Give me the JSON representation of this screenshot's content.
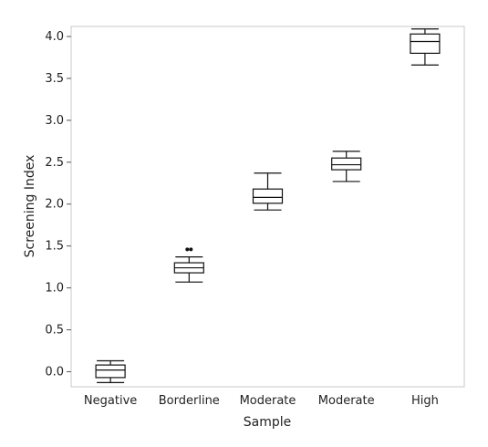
{
  "chart_data": {
    "type": "boxplot",
    "xlabel": "Sample",
    "ylabel": "Screening Index",
    "ylim": [
      -0.18,
      4.12
    ],
    "yticks": [
      0.0,
      0.5,
      1.0,
      1.5,
      2.0,
      2.5,
      3.0,
      3.5,
      4.0
    ],
    "ytick_labels": [
      "0.0",
      "0.5",
      "1.0",
      "1.5",
      "2.0",
      "2.5",
      "3.0",
      "3.5",
      "4.0"
    ],
    "grid": false,
    "categories": [
      "Negative",
      "Borderline",
      "Moderate",
      "Moderate",
      "High"
    ],
    "boxes": [
      {
        "category": "Negative",
        "min": -0.13,
        "q1": -0.07,
        "median": 0.02,
        "q3": 0.08,
        "max": 0.13,
        "outliers": []
      },
      {
        "category": "Borderline",
        "min": 1.07,
        "q1": 1.18,
        "median": 1.24,
        "q3": 1.3,
        "max": 1.37,
        "outliers": [
          1.46,
          1.46
        ]
      },
      {
        "category": "Moderate",
        "min": 1.93,
        "q1": 2.01,
        "median": 2.08,
        "q3": 2.18,
        "max": 2.37,
        "outliers": []
      },
      {
        "category": "Moderate",
        "min": 2.27,
        "q1": 2.41,
        "median": 2.47,
        "q3": 2.55,
        "max": 2.63,
        "outliers": []
      },
      {
        "category": "High",
        "min": 3.66,
        "q1": 3.8,
        "median": 3.94,
        "q3": 4.03,
        "max": 4.09,
        "outliers": []
      }
    ]
  }
}
